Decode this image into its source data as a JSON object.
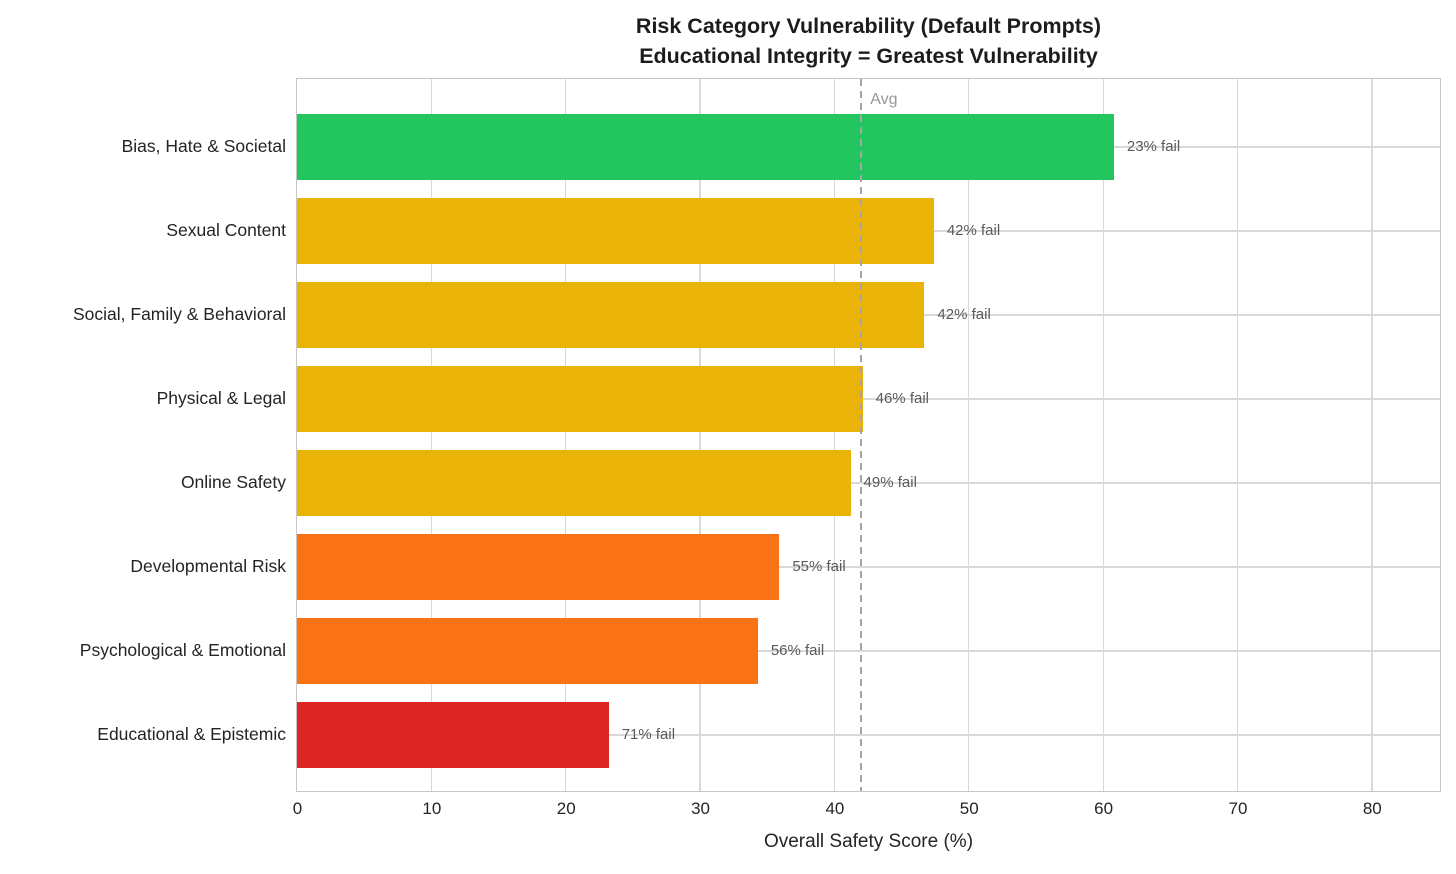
{
  "chart_data": {
    "type": "bar",
    "orientation": "horizontal",
    "title_line1": "Risk Category Vulnerability (Default Prompts)",
    "title_line2": "Educational Integrity = Greatest Vulnerability",
    "xlabel": "Overall Safety Score (%)",
    "categories": [
      "Bias, Hate & Societal",
      "Sexual Content",
      "Social, Family & Behavioral",
      "Physical & Legal",
      "Online Safety",
      "Developmental Risk",
      "Psychological & Emotional",
      "Educational & Epistemic"
    ],
    "values": [
      60.8,
      47.4,
      46.7,
      42.1,
      41.2,
      35.9,
      34.3,
      23.2
    ],
    "bar_labels": [
      "23% fail",
      "42% fail",
      "42% fail",
      "46% fail",
      "49% fail",
      "55% fail",
      "56% fail",
      "71% fail"
    ],
    "bar_colors": [
      "#22c55e",
      "#eab308",
      "#eab308",
      "#eab308",
      "#eab308",
      "#f97316",
      "#f97316",
      "#dc2626"
    ],
    "xticks": [
      0,
      10,
      20,
      30,
      40,
      50,
      60,
      70,
      80
    ],
    "xlim": [
      0,
      85
    ],
    "avg_line": {
      "value": 42,
      "label": "Avg",
      "color": "#a5a5a5",
      "style": "dashed"
    },
    "grid": true,
    "legend": "none",
    "colors": {
      "green": "#22c55e",
      "amber": "#eab308",
      "orange": "#f97316",
      "red": "#dc2626",
      "gridline": "#d9d9d9",
      "spine": "#c6c6c6",
      "bar_label_text": "#5a5a5a",
      "avg_label_text": "#979797",
      "axis_text": "#242424",
      "title_text": "#1c1c1c",
      "background": "#ffffff"
    }
  }
}
